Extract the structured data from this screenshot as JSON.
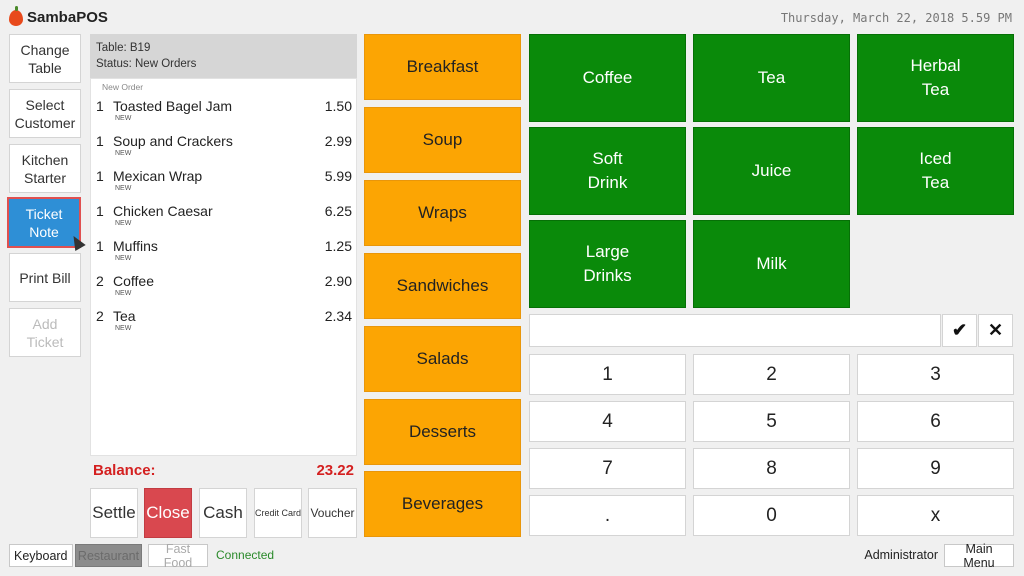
{
  "header": {
    "app_name": "SambaPOS",
    "datetime": "Thursday, March 22, 2018 5.59 PM"
  },
  "left_buttons": [
    {
      "label": "Change\nTable",
      "state": "normal"
    },
    {
      "label": "Select\nCustomer",
      "state": "normal"
    },
    {
      "label": "Kitchen\nStarter",
      "state": "normal"
    },
    {
      "label": "Ticket\nNote",
      "state": "active"
    },
    {
      "label": "Print Bill",
      "state": "normal"
    },
    {
      "label": "Add\nTicket",
      "state": "disabled"
    }
  ],
  "ticket": {
    "table": "Table: B19",
    "status": "Status: New Orders",
    "order_header": "New Order",
    "orders": [
      {
        "qty": "1",
        "name": "Toasted Bagel Jam",
        "tag": "NEW",
        "price": "1.50"
      },
      {
        "qty": "1",
        "name": "Soup and Crackers",
        "tag": "NEW",
        "price": "2.99"
      },
      {
        "qty": "1",
        "name": "Mexican Wrap",
        "tag": "NEW",
        "price": "5.99"
      },
      {
        "qty": "1",
        "name": "Chicken Caesar",
        "tag": "NEW",
        "price": "6.25"
      },
      {
        "qty": "1",
        "name": "Muffins",
        "tag": "NEW",
        "price": "1.25"
      },
      {
        "qty": "2",
        "name": "Coffee",
        "tag": "NEW",
        "price": "2.90"
      },
      {
        "qty": "2",
        "name": "Tea",
        "tag": "NEW",
        "price": "2.34"
      }
    ],
    "balance_label": "Balance:",
    "balance_value": "23.22"
  },
  "payment_buttons": {
    "settle": "Settle",
    "close": "Close",
    "cash": "Cash",
    "credit_card": "Credit Card",
    "voucher": "Voucher"
  },
  "categories": [
    "Breakfast",
    "Soup",
    "Wraps",
    "Sandwiches",
    "Salads",
    "Desserts",
    "Beverages"
  ],
  "menu_items": [
    "Coffee",
    "Tea",
    "Herbal\nTea",
    "Soft\nDrink",
    "Juice",
    "Iced\nTea",
    "Large\nDrinks",
    "Milk"
  ],
  "numpad": {
    "input_value": "",
    "confirm_icon": "check-icon",
    "clear_icon": "close-icon",
    "keys": [
      "1",
      "2",
      "3",
      "4",
      "5",
      "6",
      "7",
      "8",
      "9",
      ".",
      "0",
      "x"
    ],
    "confirm_glyph": "✔",
    "clear_glyph": "✕"
  },
  "footer": {
    "keyboard": "Keyboard",
    "restaurant": "Restaurant",
    "fast_food": "Fast Food",
    "status": "Connected",
    "user": "Administrator",
    "main_menu": "Main Menu"
  },
  "colors": {
    "category": "#fca503",
    "menu_item": "#0a8a0a",
    "active_button": "#2e8fd6",
    "balance": "#d42020",
    "close_button": "#d9484f"
  }
}
